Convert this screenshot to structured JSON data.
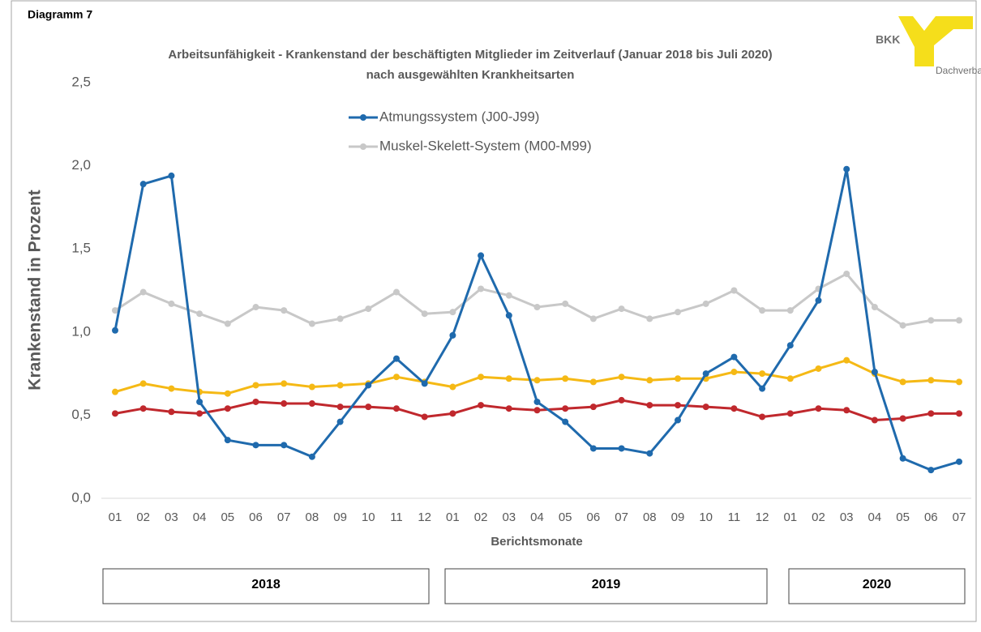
{
  "chart_data": {
    "type": "line",
    "figure_label": "Diagramm 7",
    "title": "Arbeitsunfähigkeit - Krankenstand der beschäftigten Mitglieder im Zeitverlauf (Januar 2018 bis Juli 2020)",
    "subtitle": "nach ausgewählten Krankheitsarten",
    "logo": {
      "text": "BKK",
      "subtitle": "Dachverband"
    },
    "y_label": "Krankenstand in Prozent",
    "x_label": "Berichtsmonate",
    "categories": [
      "01",
      "02",
      "03",
      "04",
      "05",
      "06",
      "07",
      "08",
      "09",
      "10",
      "11",
      "12",
      "01",
      "02",
      "03",
      "04",
      "05",
      "06",
      "07",
      "08",
      "09",
      "10",
      "11",
      "12",
      "01",
      "02",
      "03",
      "04",
      "05",
      "06",
      "07"
    ],
    "year_groups": [
      "2018",
      "2019",
      "2020"
    ],
    "ylim": [
      0,
      2.5
    ],
    "yticks": [
      {
        "value": 0,
        "label": "0,0"
      },
      {
        "value": 0.5,
        "label": "0,5"
      },
      {
        "value": 1,
        "label": "1,0"
      },
      {
        "value": 1.5,
        "label": "1,5"
      },
      {
        "value": 2,
        "label": "2,0"
      },
      {
        "value": 2.5,
        "label": "2,5"
      }
    ],
    "series": [
      {
        "name": "Atmungssystem (J00-J99)",
        "color": "#1f6aad",
        "values": [
          1.01,
          1.89,
          1.94,
          0.58,
          0.35,
          0.32,
          0.32,
          0.25,
          0.46,
          0.68,
          0.84,
          0.69,
          0.98,
          1.46,
          1.1,
          0.58,
          0.46,
          0.3,
          0.3,
          0.27,
          0.47,
          0.75,
          0.85,
          0.66,
          0.92,
          1.19,
          1.98,
          0.76,
          0.24,
          0.17,
          0.22
        ]
      },
      {
        "name": "Muskel-Skelett-System (M00-M99)",
        "color": "#c8c8c8",
        "values": [
          1.13,
          1.24,
          1.17,
          1.11,
          1.05,
          1.15,
          1.13,
          1.05,
          1.08,
          1.14,
          1.24,
          1.11,
          1.12,
          1.26,
          1.22,
          1.15,
          1.17,
          1.08,
          1.14,
          1.08,
          1.12,
          1.17,
          1.25,
          1.13,
          1.13,
          1.26,
          1.35,
          1.15,
          1.04,
          1.07,
          1.07
        ]
      },
      {
        "color": "#f5b915",
        "values": [
          0.64,
          0.69,
          0.66,
          0.64,
          0.63,
          0.68,
          0.69,
          0.67,
          0.68,
          0.69,
          0.73,
          0.7,
          0.67,
          0.73,
          0.72,
          0.71,
          0.72,
          0.7,
          0.73,
          0.71,
          0.72,
          0.72,
          0.76,
          0.75,
          0.72,
          0.78,
          0.83,
          0.75,
          0.7,
          0.71,
          0.7
        ]
      },
      {
        "color": "#c0282d",
        "values": [
          0.51,
          0.54,
          0.52,
          0.51,
          0.54,
          0.58,
          0.57,
          0.57,
          0.55,
          0.55,
          0.54,
          0.49,
          0.51,
          0.56,
          0.54,
          0.53,
          0.54,
          0.55,
          0.59,
          0.56,
          0.56,
          0.55,
          0.54,
          0.49,
          0.51,
          0.54,
          0.53,
          0.47,
          0.48,
          0.51,
          0.51
        ]
      }
    ]
  }
}
